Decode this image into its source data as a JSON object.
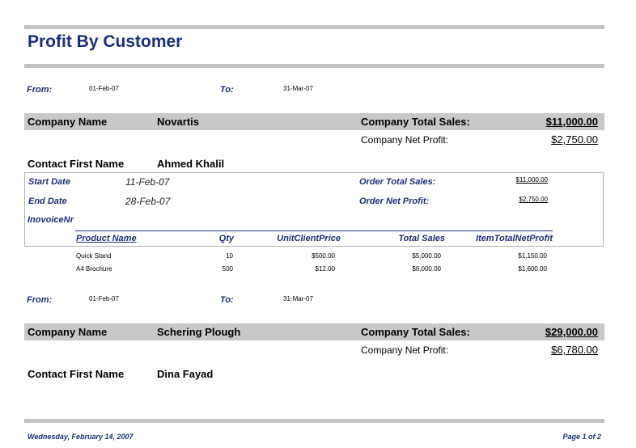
{
  "report_title": "Profit By Customer",
  "labels": {
    "from": "From:",
    "to": "To:",
    "company_name": "Company Name",
    "company_total_sales": "Company Total Sales:",
    "company_net_profit": "Company Net Profit:",
    "contact_first_name": "Contact First Name",
    "start_date": "Start Date",
    "end_date": "End Date",
    "order_total_sales": "Order Total Sales:",
    "order_net_profit": "Order Net Profit:",
    "invoice_nr": "InovoiceNr"
  },
  "columns": [
    "Product Name",
    "Qty",
    "UnitClientPrice",
    "Total Sales",
    "ItemTotalNetProfit"
  ],
  "groups": [
    {
      "from_date": "01-Feb-07",
      "to_date": "31-Mar-07",
      "company_name": "Novartis",
      "company_total_sales": "$11,000.00",
      "company_net_profit": "$2,750.00",
      "contact_first_name": "Ahmed Khalil",
      "order": {
        "start_date": "11-Feb-07",
        "end_date": "28-Feb-07",
        "order_total_sales": "$11,000.00",
        "order_net_profit": "$2,750.00",
        "invoice_nr": ""
      },
      "rows": [
        [
          "Quick Stand",
          "10",
          "$500.00",
          "$5,000.00",
          "$1,150.00"
        ],
        [
          "A4 Brochure",
          "500",
          "$12.00",
          "$6,000.00",
          "$1,600.00"
        ]
      ]
    },
    {
      "from_date": "01-Feb-07",
      "to_date": "31-Mar-07",
      "company_name": "Schering Plough",
      "company_total_sales": "$29,000.00",
      "company_net_profit": "$6,780.00",
      "contact_first_name": "Dina Fayad"
    }
  ],
  "footer": {
    "date": "Wednesday, February 14, 2007",
    "page": "Page 1 of 2"
  }
}
